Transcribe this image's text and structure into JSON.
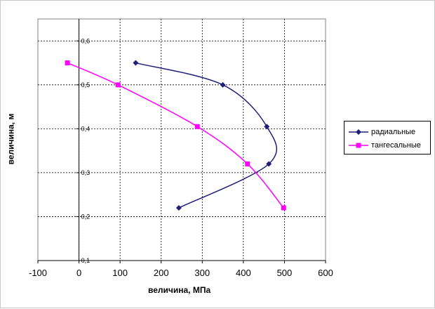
{
  "chart_data": {
    "type": "line",
    "title": "",
    "xlabel": "величина, МПа",
    "ylabel": "величина, м",
    "xlim": [
      -100,
      600
    ],
    "ylim": [
      0.1,
      0.65
    ],
    "x_ticks": [
      "-100",
      "0",
      "100",
      "200",
      "300",
      "400",
      "500",
      "600"
    ],
    "y_ticks": [
      "0,1",
      "0,2",
      "0,3",
      "0,4",
      "0,5",
      "0,6"
    ],
    "grid": true,
    "legend_position": "right",
    "series": [
      {
        "name": "радиальные",
        "color": "#1f1f7a",
        "marker": "diamond",
        "smooth": true,
        "points": [
          [
            138,
            0.55
          ],
          [
            350,
            0.5
          ],
          [
            457,
            0.405
          ],
          [
            462,
            0.32
          ],
          [
            243,
            0.22
          ]
        ]
      },
      {
        "name": "тангесальные",
        "color": "#ff00ff",
        "marker": "square",
        "smooth": true,
        "points": [
          [
            -28,
            0.55
          ],
          [
            95,
            0.5
          ],
          [
            288,
            0.405
          ],
          [
            410,
            0.32
          ],
          [
            498,
            0.22
          ]
        ]
      }
    ]
  }
}
